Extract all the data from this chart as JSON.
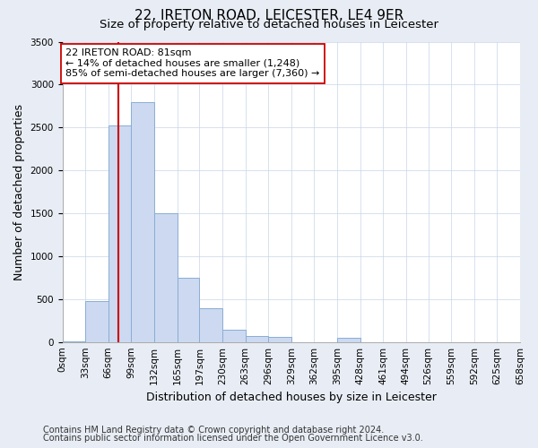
{
  "title": "22, IRETON ROAD, LEICESTER, LE4 9ER",
  "subtitle": "Size of property relative to detached houses in Leicester",
  "xlabel": "Distribution of detached houses by size in Leicester",
  "ylabel": "Number of detached properties",
  "footnote1": "Contains HM Land Registry data © Crown copyright and database right 2024.",
  "footnote2": "Contains public sector information licensed under the Open Government Licence v3.0.",
  "annotation_line1": "22 IRETON ROAD: 81sqm",
  "annotation_line2": "← 14% of detached houses are smaller (1,248)",
  "annotation_line3": "85% of semi-detached houses are larger (7,360) →",
  "property_size_sqm": 81,
  "bin_edges": [
    0,
    33,
    66,
    99,
    132,
    165,
    197,
    230,
    263,
    296,
    329,
    362,
    395,
    428,
    461,
    494,
    526,
    559,
    592,
    625,
    658
  ],
  "bin_labels": [
    "0sqm",
    "33sqm",
    "66sqm",
    "99sqm",
    "132sqm",
    "165sqm",
    "197sqm",
    "230sqm",
    "263sqm",
    "296sqm",
    "329sqm",
    "362sqm",
    "395sqm",
    "428sqm",
    "461sqm",
    "494sqm",
    "526sqm",
    "559sqm",
    "592sqm",
    "625sqm",
    "658sqm"
  ],
  "bar_heights": [
    5,
    480,
    2520,
    2800,
    1500,
    750,
    390,
    140,
    70,
    60,
    0,
    0,
    50,
    0,
    0,
    0,
    0,
    0,
    0,
    0
  ],
  "bar_color": "#ccd9f0",
  "bar_edge_color": "#8aadd4",
  "vline_color": "#cc0000",
  "vline_x": 81,
  "ylim": [
    0,
    3500
  ],
  "yticks": [
    0,
    500,
    1000,
    1500,
    2000,
    2500,
    3000,
    3500
  ],
  "fig_bg_color": "#e8edf5",
  "plot_bg_color": "#ffffff",
  "title_fontsize": 11,
  "subtitle_fontsize": 9.5,
  "axis_label_fontsize": 9,
  "tick_fontsize": 7.5,
  "annotation_fontsize": 8,
  "footnote_fontsize": 7
}
